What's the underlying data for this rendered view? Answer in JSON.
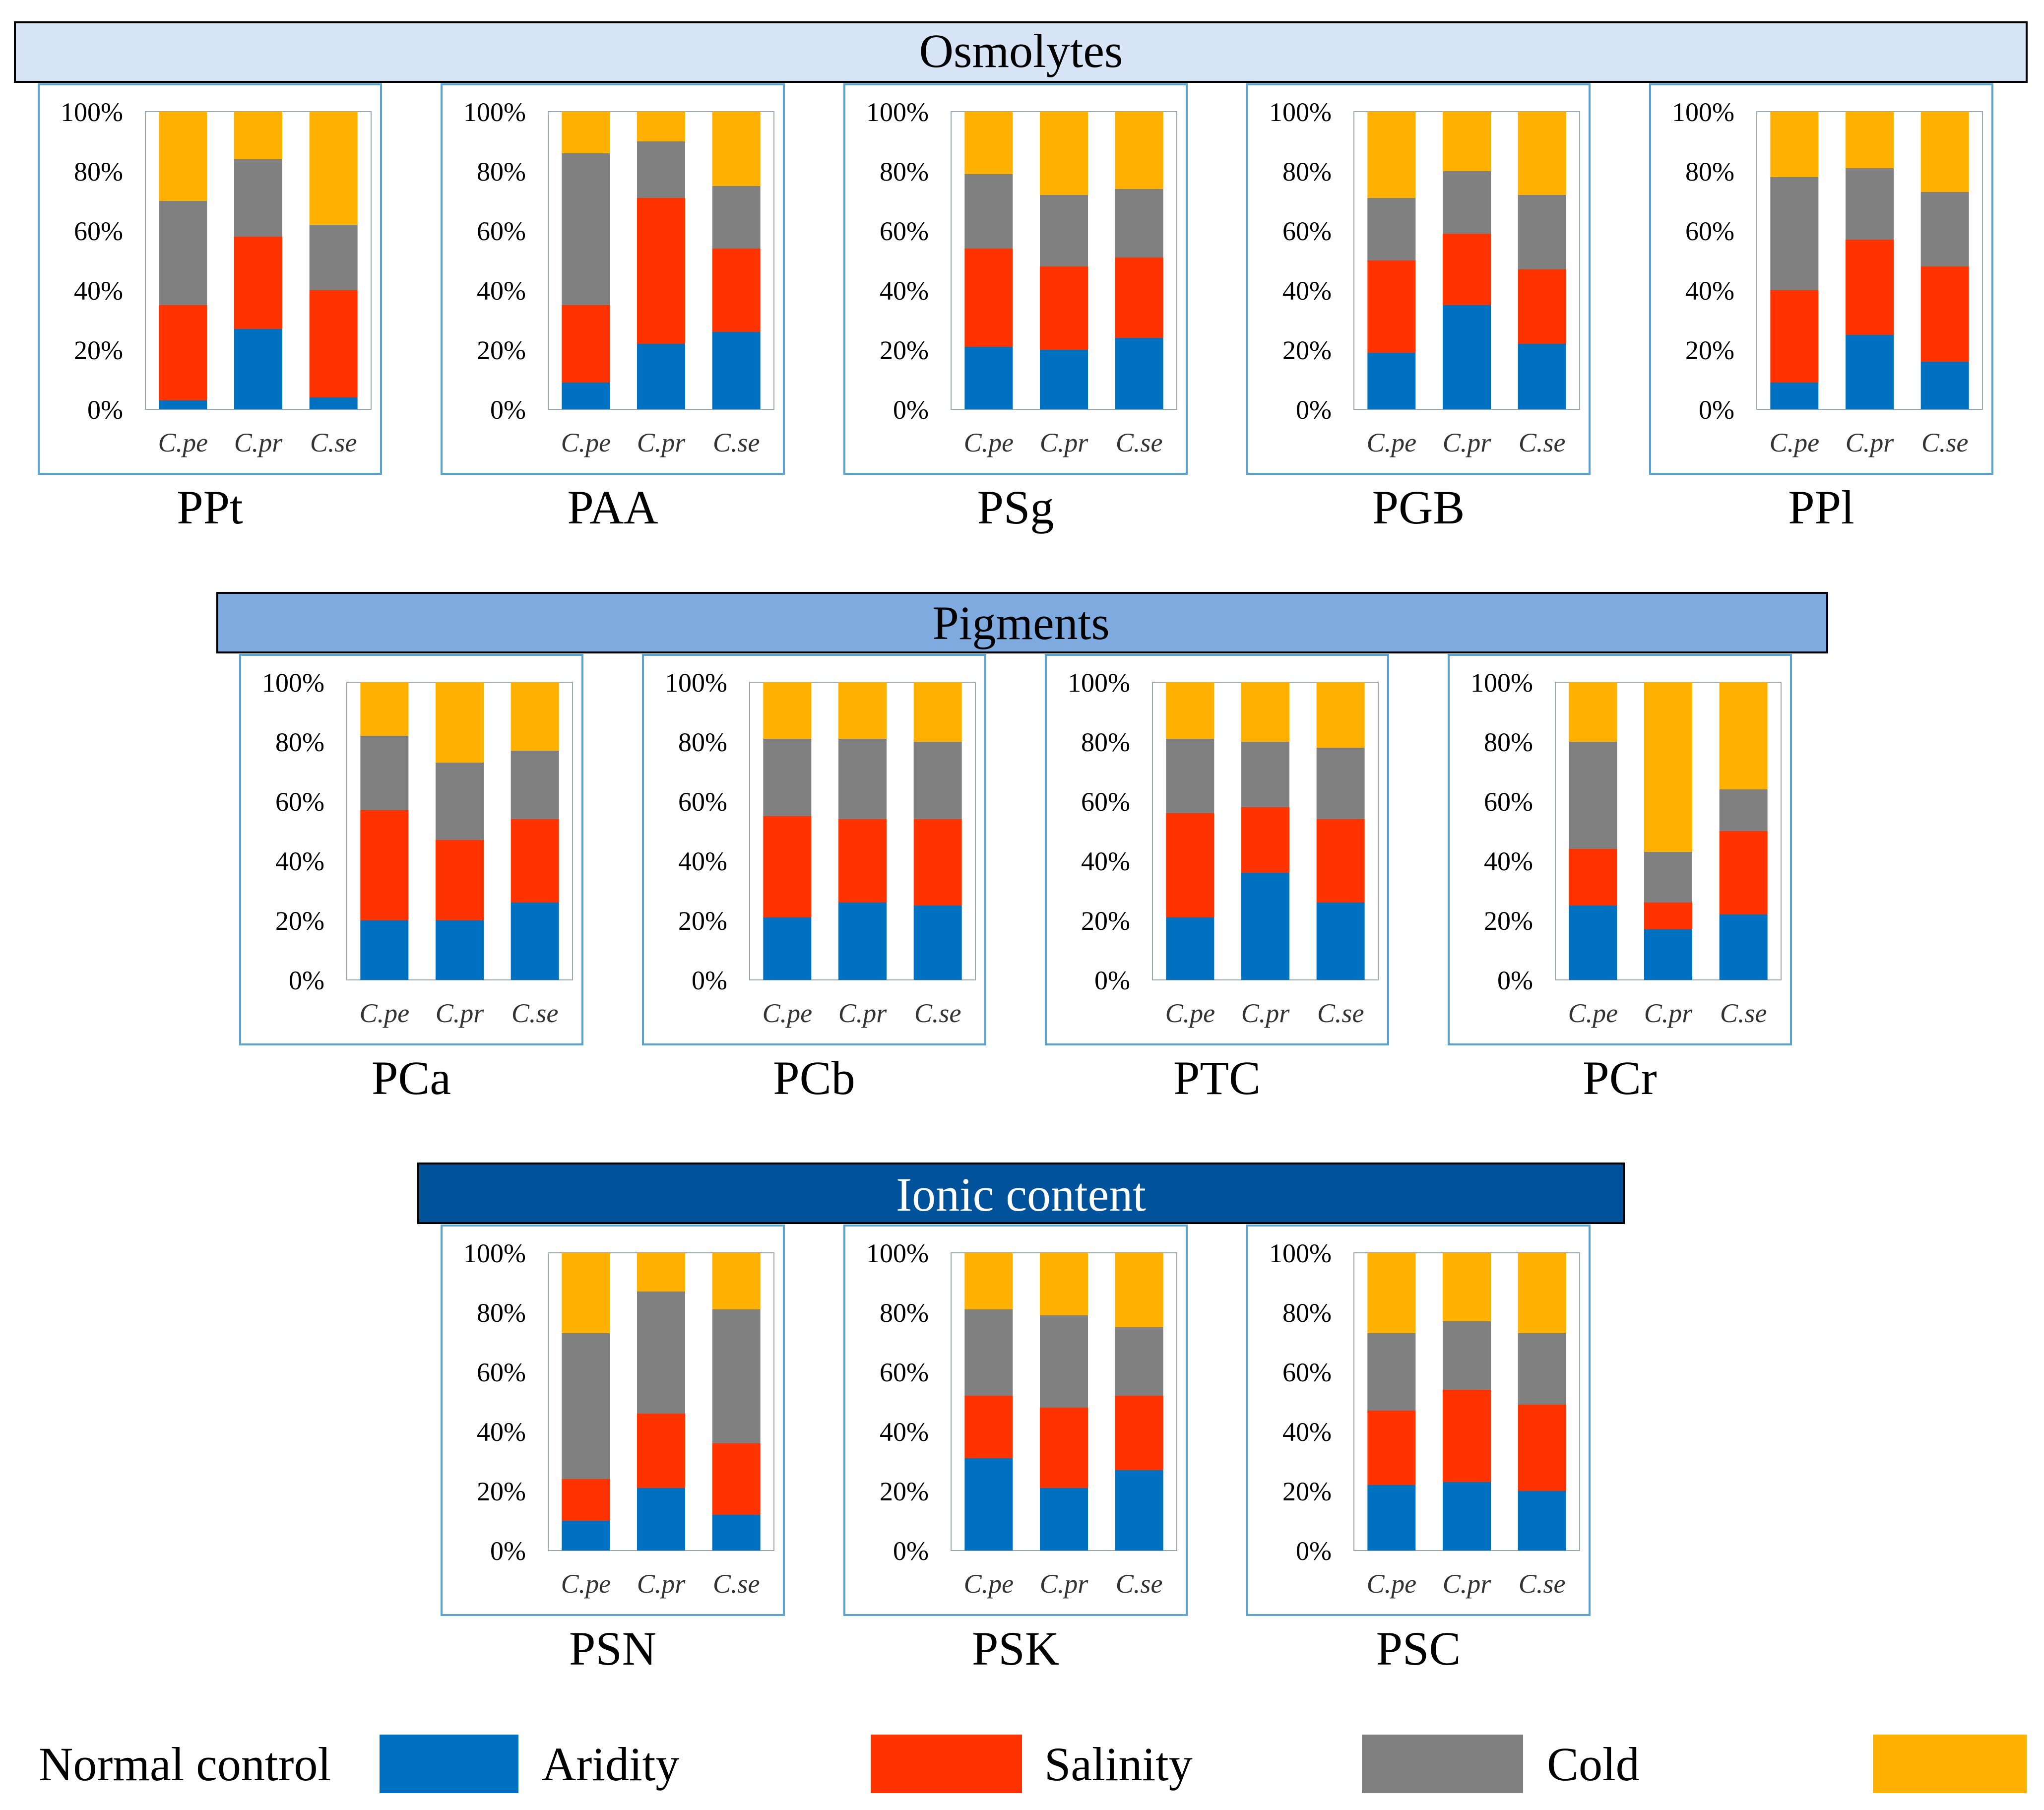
{
  "colors": {
    "aridity": "#0070C0",
    "salinity": "#FF3300",
    "cold": "#808080",
    "normal_control": "#FFB000",
    "chart_border": "#5BA3D0",
    "osmolytes_band": "#D6E4F5",
    "pigments_band": "#7FAADF",
    "ionic_band": "#00539B"
  },
  "sections": [
    {
      "id": "osmolytes",
      "title": "Osmolytes"
    },
    {
      "id": "pigments",
      "title": "Pigments"
    },
    {
      "id": "ionic",
      "title": "Ionic content"
    }
  ],
  "legend": [
    {
      "label": "Normal control",
      "key": "normal_control"
    },
    {
      "label": "Aridity",
      "key": "aridity"
    },
    {
      "label": "Salinity",
      "key": "salinity"
    },
    {
      "label": "Cold",
      "key": "cold"
    }
  ],
  "chart_data": [
    {
      "type": "bar",
      "stacked": true,
      "section": "Osmolytes",
      "title": "PPt",
      "categories": [
        "C.pe",
        "C.pr",
        "C.se"
      ],
      "yticks": [
        "0%",
        "20%",
        "40%",
        "60%",
        "80%",
        "100%"
      ],
      "ylim": [
        0,
        100
      ],
      "series": [
        {
          "name": "Aridity",
          "values": [
            3,
            27,
            4
          ]
        },
        {
          "name": "Salinity",
          "values": [
            32,
            31,
            36
          ]
        },
        {
          "name": "Cold",
          "values": [
            35,
            26,
            22
          ]
        },
        {
          "name": "Normal control",
          "values": [
            30,
            16,
            38
          ]
        }
      ]
    },
    {
      "type": "bar",
      "stacked": true,
      "section": "Osmolytes",
      "title": "PAA",
      "categories": [
        "C.pe",
        "C.pr",
        "C.se"
      ],
      "yticks": [
        "0%",
        "20%",
        "40%",
        "60%",
        "80%",
        "100%"
      ],
      "ylim": [
        0,
        100
      ],
      "series": [
        {
          "name": "Aridity",
          "values": [
            9,
            22,
            26
          ]
        },
        {
          "name": "Salinity",
          "values": [
            26,
            49,
            28
          ]
        },
        {
          "name": "Cold",
          "values": [
            51,
            19,
            21
          ]
        },
        {
          "name": "Normal control",
          "values": [
            14,
            10,
            25
          ]
        }
      ]
    },
    {
      "type": "bar",
      "stacked": true,
      "section": "Osmolytes",
      "title": "PSg",
      "categories": [
        "C.pe",
        "C.pr",
        "C.se"
      ],
      "yticks": [
        "0%",
        "20%",
        "40%",
        "60%",
        "80%",
        "100%"
      ],
      "ylim": [
        0,
        100
      ],
      "series": [
        {
          "name": "Aridity",
          "values": [
            21,
            20,
            24
          ]
        },
        {
          "name": "Salinity",
          "values": [
            33,
            28,
            27
          ]
        },
        {
          "name": "Cold",
          "values": [
            25,
            24,
            23
          ]
        },
        {
          "name": "Normal control",
          "values": [
            21,
            28,
            26
          ]
        }
      ]
    },
    {
      "type": "bar",
      "stacked": true,
      "section": "Osmolytes",
      "title": "PGB",
      "categories": [
        "C.pe",
        "C.pr",
        "C.se"
      ],
      "yticks": [
        "0%",
        "20%",
        "40%",
        "60%",
        "80%",
        "100%"
      ],
      "ylim": [
        0,
        100
      ],
      "series": [
        {
          "name": "Aridity",
          "values": [
            19,
            35,
            22
          ]
        },
        {
          "name": "Salinity",
          "values": [
            31,
            24,
            25
          ]
        },
        {
          "name": "Cold",
          "values": [
            21,
            21,
            25
          ]
        },
        {
          "name": "Normal control",
          "values": [
            29,
            20,
            28
          ]
        }
      ]
    },
    {
      "type": "bar",
      "stacked": true,
      "section": "Osmolytes",
      "title": "PPl",
      "categories": [
        "C.pe",
        "C.pr",
        "C.se"
      ],
      "yticks": [
        "0%",
        "20%",
        "40%",
        "60%",
        "80%",
        "100%"
      ],
      "ylim": [
        0,
        100
      ],
      "series": [
        {
          "name": "Aridity",
          "values": [
            9,
            25,
            16
          ]
        },
        {
          "name": "Salinity",
          "values": [
            31,
            32,
            32
          ]
        },
        {
          "name": "Cold",
          "values": [
            38,
            24,
            25
          ]
        },
        {
          "name": "Normal control",
          "values": [
            22,
            19,
            27
          ]
        }
      ]
    },
    {
      "type": "bar",
      "stacked": true,
      "section": "Pigments",
      "title": "PCa",
      "categories": [
        "C.pe",
        "C.pr",
        "C.se"
      ],
      "yticks": [
        "0%",
        "20%",
        "40%",
        "60%",
        "80%",
        "100%"
      ],
      "ylim": [
        0,
        100
      ],
      "series": [
        {
          "name": "Aridity",
          "values": [
            20,
            20,
            26
          ]
        },
        {
          "name": "Salinity",
          "values": [
            37,
            27,
            28
          ]
        },
        {
          "name": "Cold",
          "values": [
            25,
            26,
            23
          ]
        },
        {
          "name": "Normal control",
          "values": [
            18,
            27,
            23
          ]
        }
      ]
    },
    {
      "type": "bar",
      "stacked": true,
      "section": "Pigments",
      "title": "PCb",
      "categories": [
        "C.pe",
        "C.pr",
        "C.se"
      ],
      "yticks": [
        "0%",
        "20%",
        "40%",
        "60%",
        "80%",
        "100%"
      ],
      "ylim": [
        0,
        100
      ],
      "series": [
        {
          "name": "Aridity",
          "values": [
            21,
            26,
            25
          ]
        },
        {
          "name": "Salinity",
          "values": [
            34,
            28,
            29
          ]
        },
        {
          "name": "Cold",
          "values": [
            26,
            27,
            26
          ]
        },
        {
          "name": "Normal control",
          "values": [
            19,
            19,
            20
          ]
        }
      ]
    },
    {
      "type": "bar",
      "stacked": true,
      "section": "Pigments",
      "title": "PTC",
      "categories": [
        "C.pe",
        "C.pr",
        "C.se"
      ],
      "yticks": [
        "0%",
        "20%",
        "40%",
        "60%",
        "80%",
        "100%"
      ],
      "ylim": [
        0,
        100
      ],
      "series": [
        {
          "name": "Aridity",
          "values": [
            21,
            36,
            26
          ]
        },
        {
          "name": "Salinity",
          "values": [
            35,
            22,
            28
          ]
        },
        {
          "name": "Cold",
          "values": [
            25,
            22,
            24
          ]
        },
        {
          "name": "Normal control",
          "values": [
            19,
            20,
            22
          ]
        }
      ]
    },
    {
      "type": "bar",
      "stacked": true,
      "section": "Pigments",
      "title": "PCr",
      "categories": [
        "C.pe",
        "C.pr",
        "C.se"
      ],
      "yticks": [
        "0%",
        "20%",
        "40%",
        "60%",
        "80%",
        "100%"
      ],
      "ylim": [
        0,
        100
      ],
      "series": [
        {
          "name": "Aridity",
          "values": [
            25,
            17,
            22
          ]
        },
        {
          "name": "Salinity",
          "values": [
            19,
            9,
            28
          ]
        },
        {
          "name": "Cold",
          "values": [
            36,
            17,
            14
          ]
        },
        {
          "name": "Normal control",
          "values": [
            20,
            57,
            36
          ]
        }
      ]
    },
    {
      "type": "bar",
      "stacked": true,
      "section": "Ionic content",
      "title": "PSN",
      "categories": [
        "C.pe",
        "C.pr",
        "C.se"
      ],
      "yticks": [
        "0%",
        "20%",
        "40%",
        "60%",
        "80%",
        "100%"
      ],
      "ylim": [
        0,
        100
      ],
      "series": [
        {
          "name": "Aridity",
          "values": [
            10,
            21,
            12
          ]
        },
        {
          "name": "Salinity",
          "values": [
            14,
            25,
            24
          ]
        },
        {
          "name": "Cold",
          "values": [
            49,
            41,
            45
          ]
        },
        {
          "name": "Normal control",
          "values": [
            27,
            13,
            19
          ]
        }
      ]
    },
    {
      "type": "bar",
      "stacked": true,
      "section": "Ionic content",
      "title": "PSK",
      "categories": [
        "C.pe",
        "C.pr",
        "C.se"
      ],
      "yticks": [
        "0%",
        "20%",
        "40%",
        "60%",
        "80%",
        "100%"
      ],
      "ylim": [
        0,
        100
      ],
      "series": [
        {
          "name": "Aridity",
          "values": [
            31,
            21,
            27
          ]
        },
        {
          "name": "Salinity",
          "values": [
            21,
            27,
            25
          ]
        },
        {
          "name": "Cold",
          "values": [
            29,
            31,
            23
          ]
        },
        {
          "name": "Normal control",
          "values": [
            19,
            21,
            25
          ]
        }
      ]
    },
    {
      "type": "bar",
      "stacked": true,
      "section": "Ionic content",
      "title": "PSC",
      "categories": [
        "C.pe",
        "C.pr",
        "C.se"
      ],
      "yticks": [
        "0%",
        "20%",
        "40%",
        "60%",
        "80%",
        "100%"
      ],
      "ylim": [
        0,
        100
      ],
      "series": [
        {
          "name": "Aridity",
          "values": [
            22,
            23,
            20
          ]
        },
        {
          "name": "Salinity",
          "values": [
            25,
            31,
            29
          ]
        },
        {
          "name": "Cold",
          "values": [
            26,
            23,
            24
          ]
        },
        {
          "name": "Normal control",
          "values": [
            27,
            23,
            27
          ]
        }
      ]
    }
  ]
}
